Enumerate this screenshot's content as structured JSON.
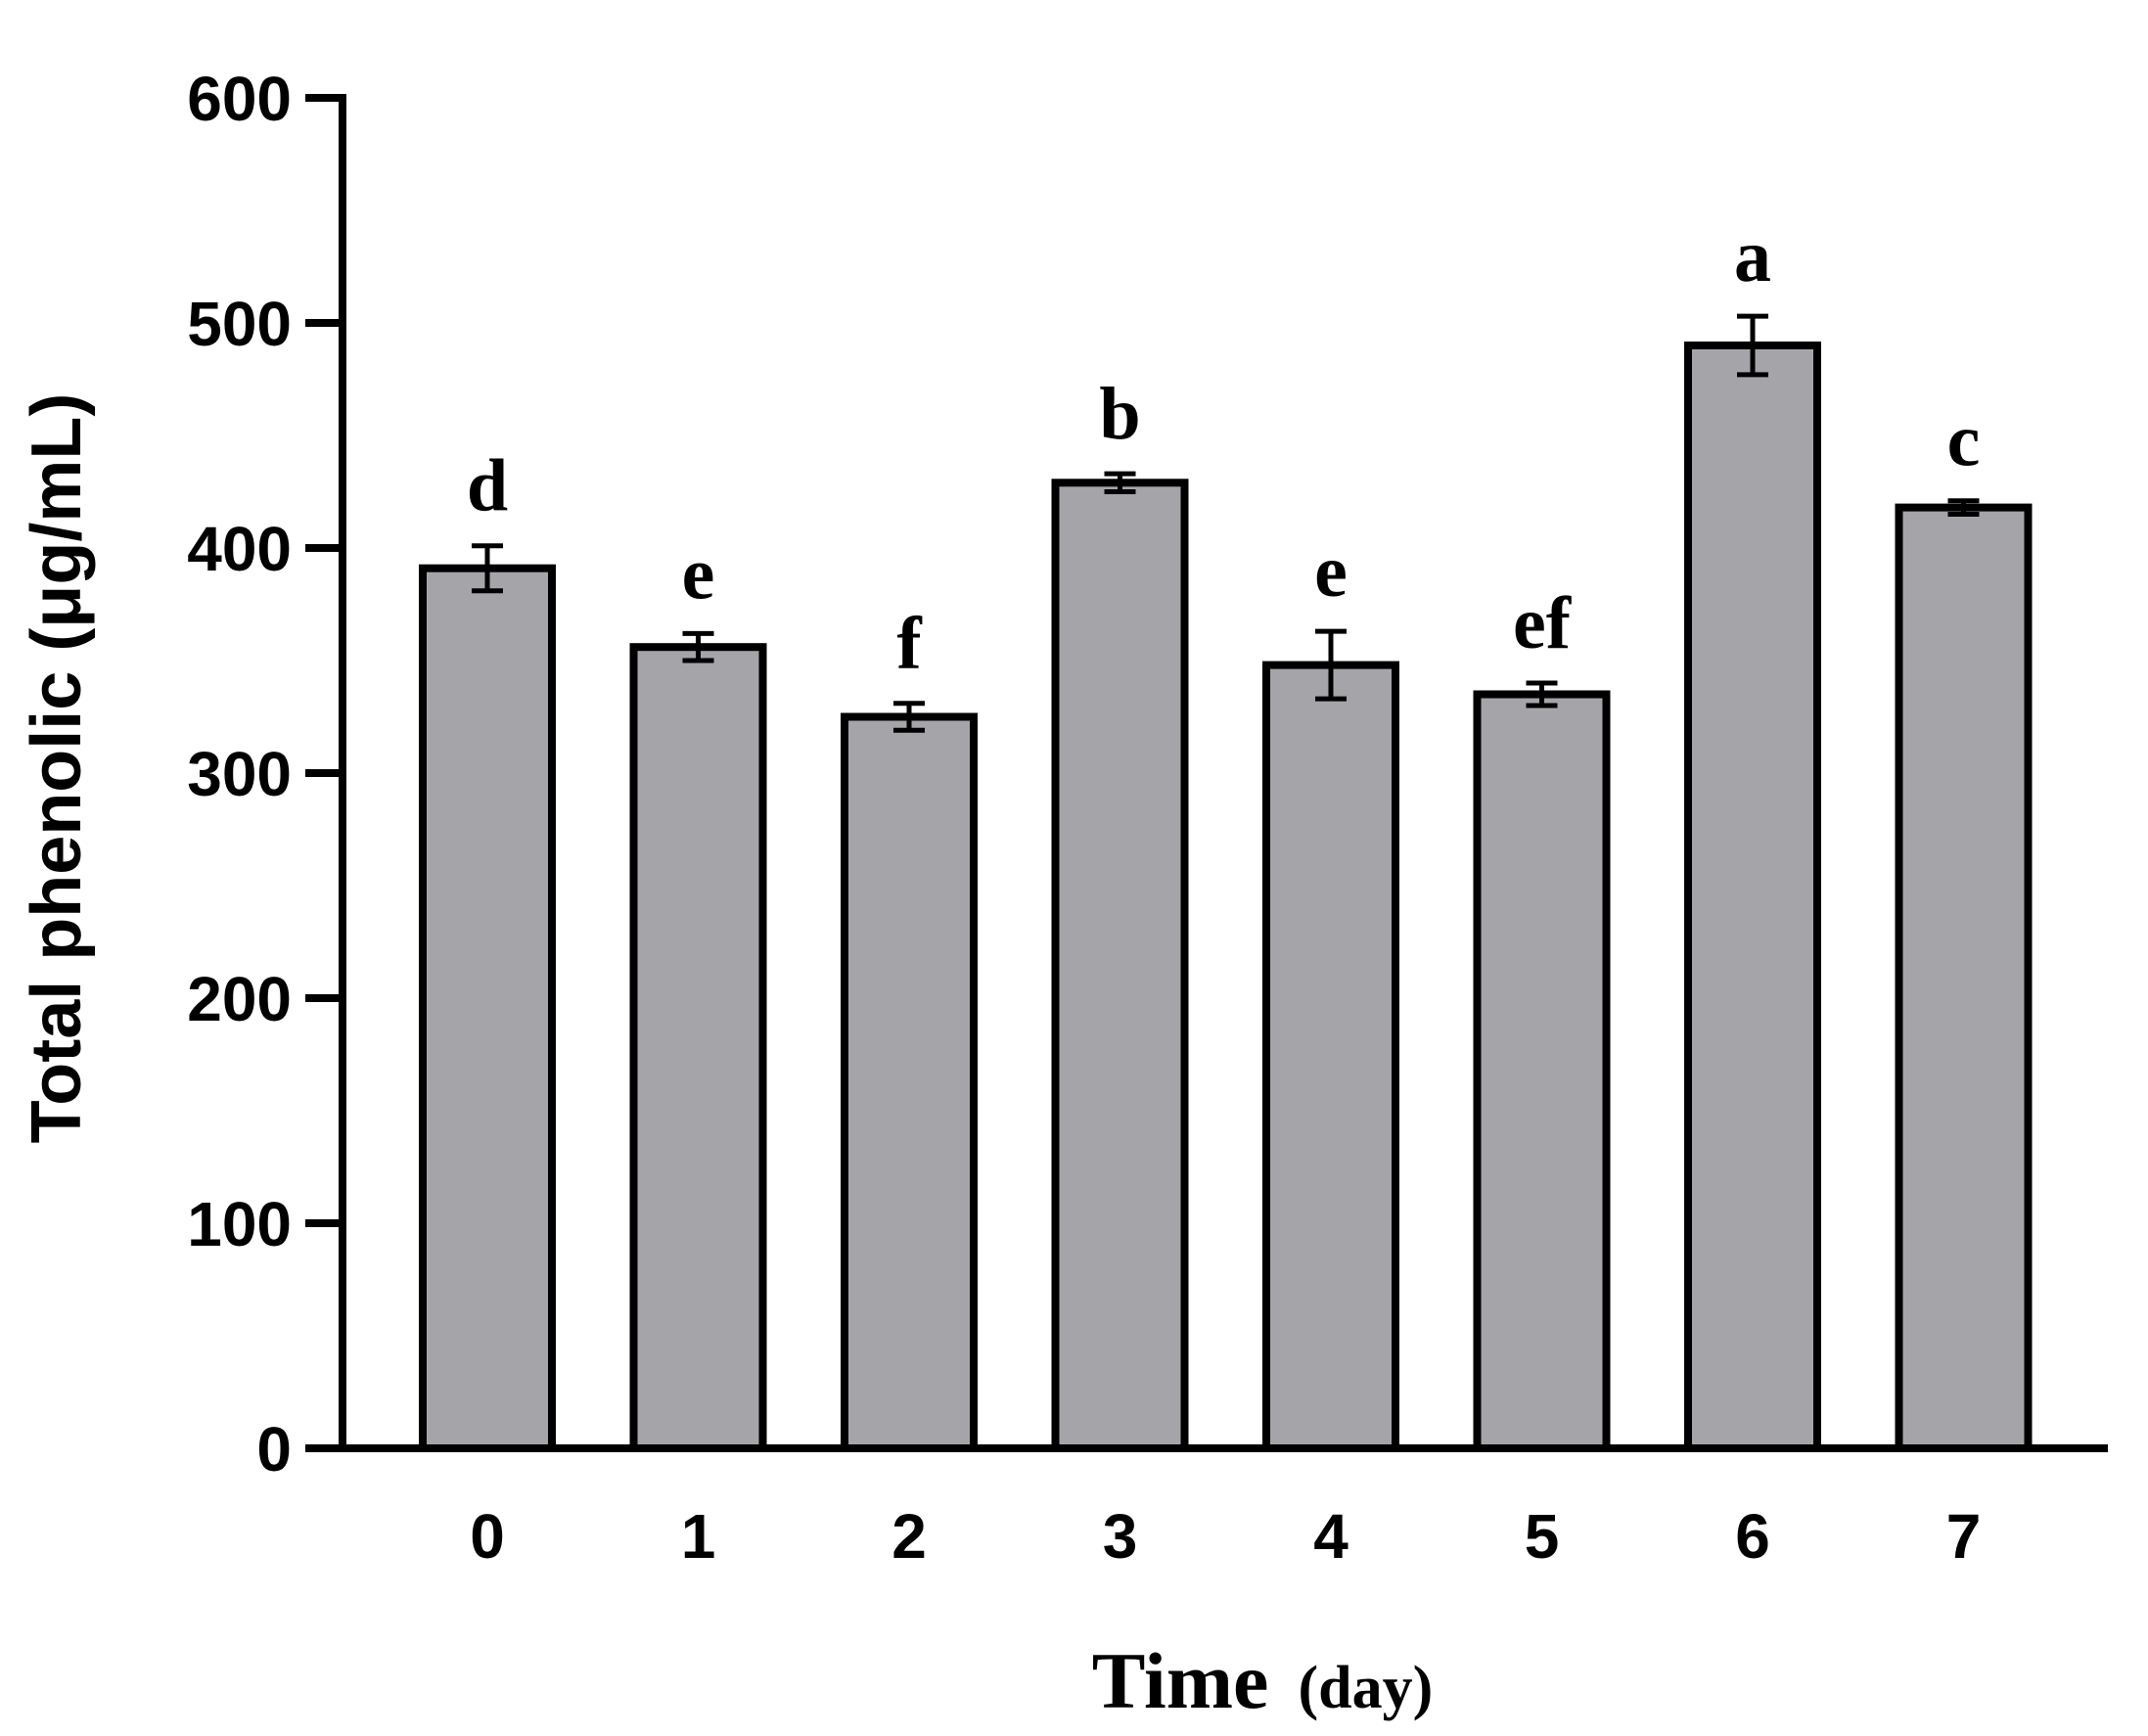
{
  "chart_data": {
    "type": "bar",
    "categories": [
      "0",
      "1",
      "2",
      "3",
      "4",
      "5",
      "6",
      "7"
    ],
    "values": [
      391,
      356,
      325,
      429,
      348,
      335,
      490,
      418
    ],
    "errors": [
      10,
      6,
      6,
      4,
      15,
      5,
      13,
      3
    ],
    "significance_letters": [
      "d",
      "e",
      "f",
      "b",
      "e",
      "ef",
      "a",
      "c"
    ],
    "xlabel": "Time",
    "xlabel_unit": "(day)",
    "ylabel": "Total phenolic (μg/mL)",
    "ylim": [
      0,
      600
    ],
    "yticks": [
      "0",
      "100",
      "200",
      "300",
      "400",
      "500",
      "600"
    ],
    "bar_color": "#a5a4a9",
    "bar_edge_color": "#000000",
    "grid": false,
    "legend": "none"
  }
}
